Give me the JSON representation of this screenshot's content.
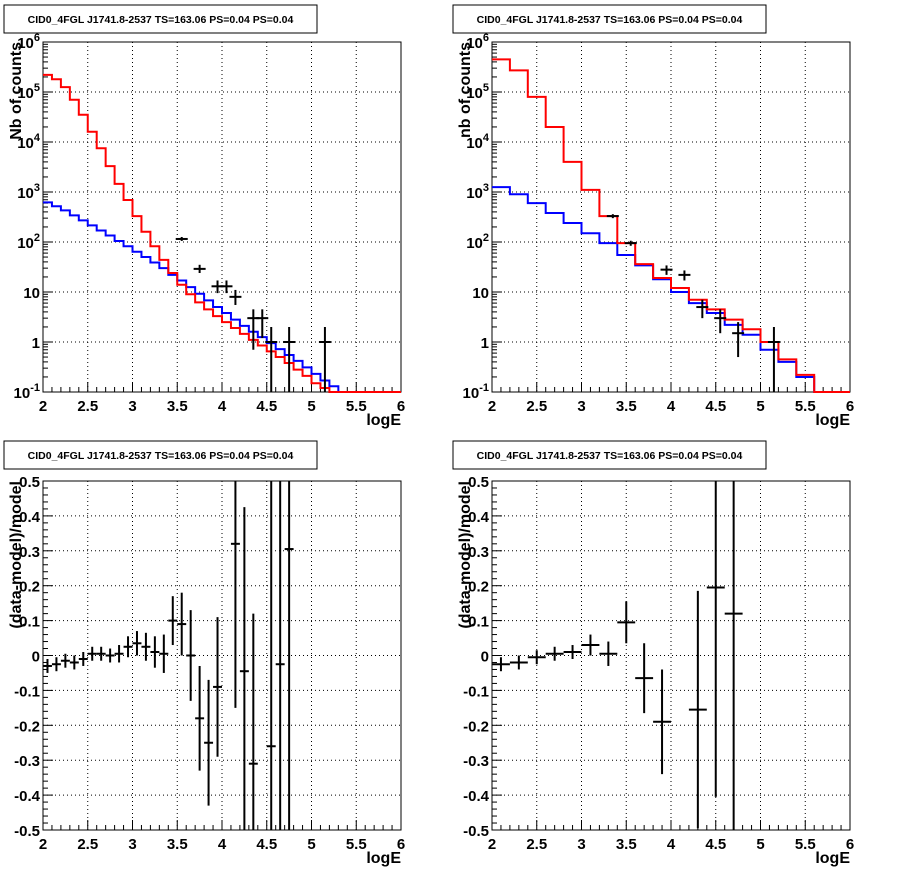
{
  "chart_data": [
    {
      "type": "line",
      "title": "CID0_4FGL J1741.8-2537 TS=163.06 PS=0.04 PS=0.04",
      "xlabel": "logE",
      "ylabel": "Nb of counts",
      "xlim": [
        2,
        6
      ],
      "ylim": [
        0.1,
        1000000
      ],
      "yscale": "log",
      "grid": true,
      "xticks": [
        "2",
        "2.5",
        "3",
        "3.5",
        "4",
        "4.5",
        "5",
        "5.5",
        "6"
      ],
      "yticks": [
        "10^-1",
        "1",
        "10",
        "10^2",
        "10^3",
        "10^4",
        "10^5",
        "10^6"
      ],
      "bin_edges": [
        2.0,
        2.1,
        2.2,
        2.3,
        2.4,
        2.5,
        2.6,
        2.7,
        2.8,
        2.9,
        3.0,
        3.1,
        3.2,
        3.3,
        3.4,
        3.5,
        3.6,
        3.7,
        3.8,
        3.9,
        4.0,
        4.1,
        4.2,
        4.3,
        4.4,
        4.5,
        4.6,
        4.7,
        4.8,
        4.9,
        5.0,
        5.1,
        5.2,
        5.3,
        5.4,
        5.5,
        5.6,
        5.7,
        5.8,
        5.9,
        6.0
      ],
      "series": [
        {
          "color": "#0000ff",
          "values": [
            620,
            520,
            430,
            340,
            270,
            215,
            170,
            135,
            105,
            82,
            64,
            50,
            39,
            30,
            22,
            17,
            12.5,
            9.2,
            6.8,
            5.0,
            3.8,
            2.8,
            2.1,
            1.6,
            1.25,
            0.95,
            0.72,
            0.55,
            0.42,
            0.31,
            0.23,
            0.17,
            0.13,
            0.1,
            0.1,
            0.1,
            0.1,
            0.1,
            0.1,
            0.1
          ]
        },
        {
          "color": "#ff0000",
          "values": [
            220000,
            180000,
            125000,
            70000,
            35000,
            16000,
            7500,
            3300,
            1450,
            690,
            330,
            160,
            82,
            44,
            24,
            14,
            9,
            6.2,
            4.5,
            3.3,
            2.5,
            1.9,
            1.45,
            1.1,
            0.85,
            0.65,
            0.5,
            0.38,
            0.28,
            0.21,
            0.15,
            0.12,
            0.1,
            0.1,
            0.1,
            0.1,
            0.1,
            0.1,
            0.1,
            0.1
          ]
        }
      ],
      "data_points": [
        {
          "x": 3.55,
          "y": 115,
          "yerr": [
            105,
            126
          ]
        },
        {
          "x": 3.75,
          "y": 29,
          "yerr": [
            24,
            35
          ]
        },
        {
          "x": 3.95,
          "y": 13,
          "yerr": [
            9.5,
            17
          ]
        },
        {
          "x": 4.05,
          "y": 13,
          "yerr": [
            9.5,
            17
          ]
        },
        {
          "x": 4.15,
          "y": 8,
          "yerr": [
            5.5,
            11
          ]
        },
        {
          "x": 4.35,
          "y": 3,
          "yerr": [
            0.7,
            4.5
          ]
        },
        {
          "x": 4.45,
          "y": 3,
          "yerr": [
            1.2,
            4.5
          ]
        },
        {
          "x": 4.55,
          "y": 1,
          "yerr": [
            0.1,
            2
          ]
        },
        {
          "x": 4.75,
          "y": 1,
          "yerr": [
            0.1,
            2
          ]
        },
        {
          "x": 5.15,
          "y": 1,
          "yerr": [
            0.1,
            2
          ]
        }
      ]
    },
    {
      "type": "line",
      "title": "CID0_4FGL J1741.8-2537 TS=163.06 PS=0.04 PS=0.04",
      "xlabel": "logE",
      "ylabel": "nb of counts",
      "xlim": [
        2,
        6
      ],
      "ylim": [
        0.1,
        1000000
      ],
      "yscale": "log",
      "grid": true,
      "xticks": [
        "2",
        "2.5",
        "3",
        "3.5",
        "4",
        "4.5",
        "5",
        "5.5",
        "6"
      ],
      "yticks": [
        "10^-1",
        "1",
        "10",
        "10^2",
        "10^3",
        "10^4",
        "10^5",
        "10^6"
      ],
      "bin_edges": [
        2.0,
        2.2,
        2.4,
        2.6,
        2.8,
        3.0,
        3.2,
        3.4,
        3.6,
        3.8,
        4.0,
        4.2,
        4.4,
        4.6,
        4.8,
        5.0,
        5.2,
        5.4,
        5.6,
        5.8,
        6.0
      ],
      "series": [
        {
          "color": "#0000ff",
          "values": [
            1250,
            900,
            600,
            380,
            240,
            150,
            95,
            55,
            34,
            18,
            10,
            6,
            3.8,
            2.2,
            1.4,
            0.7,
            0.4,
            0.2,
            0.1,
            0.1
          ]
        },
        {
          "color": "#ff0000",
          "values": [
            450000,
            270000,
            80000,
            20000,
            4000,
            1100,
            330,
            95,
            36,
            19,
            12,
            7,
            4.5,
            2.8,
            1.8,
            1.0,
            0.45,
            0.22,
            0.1,
            0.1
          ]
        }
      ],
      "data_points": [
        {
          "x": 3.35,
          "y": 330,
          "yerr": [
            300,
            360
          ]
        },
        {
          "x": 3.55,
          "y": 95,
          "yerr": [
            84,
            106
          ]
        },
        {
          "x": 3.95,
          "y": 28,
          "yerr": [
            22,
            34
          ]
        },
        {
          "x": 4.15,
          "y": 22,
          "yerr": [
            17,
            27
          ]
        },
        {
          "x": 4.35,
          "y": 5,
          "yerr": [
            3,
            7
          ]
        },
        {
          "x": 4.55,
          "y": 3,
          "yerr": [
            1.5,
            4.5
          ]
        },
        {
          "x": 4.75,
          "y": 1.5,
          "yerr": [
            0.5,
            2.5
          ]
        },
        {
          "x": 5.15,
          "y": 1,
          "yerr": [
            0.1,
            2
          ]
        }
      ]
    },
    {
      "type": "scatter",
      "title": "CID0_4FGL J1741.8-2537 TS=163.06 PS=0.04 PS=0.04",
      "xlabel": "logE",
      "ylabel": "(data-model)/model",
      "xlim": [
        2,
        6
      ],
      "ylim": [
        -0.5,
        0.5
      ],
      "grid": true,
      "xticks": [
        "2",
        "2.5",
        "3",
        "3.5",
        "4",
        "4.5",
        "5",
        "5.5",
        "6"
      ],
      "yticks": [
        "-0.5",
        "-0.4",
        "-0.3",
        "-0.2",
        "-0.1",
        "0",
        "0.1",
        "0.2",
        "0.3",
        "0.4",
        "0.5"
      ],
      "xerr": 0.05,
      "points": [
        {
          "x": 2.05,
          "y": -0.03,
          "e": 0.02
        },
        {
          "x": 2.15,
          "y": -0.025,
          "e": 0.02
        },
        {
          "x": 2.25,
          "y": -0.015,
          "e": 0.02
        },
        {
          "x": 2.35,
          "y": -0.02,
          "e": 0.02
        },
        {
          "x": 2.45,
          "y": -0.01,
          "e": 0.02
        },
        {
          "x": 2.55,
          "y": 0.005,
          "e": 0.02
        },
        {
          "x": 2.65,
          "y": 0.005,
          "e": 0.02
        },
        {
          "x": 2.75,
          "y": 0.0,
          "e": 0.02
        },
        {
          "x": 2.85,
          "y": 0.005,
          "e": 0.025
        },
        {
          "x": 2.95,
          "y": 0.025,
          "e": 0.03
        },
        {
          "x": 3.05,
          "y": 0.035,
          "e": 0.035
        },
        {
          "x": 3.15,
          "y": 0.025,
          "e": 0.04
        },
        {
          "x": 3.25,
          "y": 0.01,
          "e": 0.045
        },
        {
          "x": 3.35,
          "y": 0.005,
          "e": 0.055
        },
        {
          "x": 3.45,
          "y": 0.1,
          "e": 0.07
        },
        {
          "x": 3.55,
          "y": 0.09,
          "e": 0.09
        },
        {
          "x": 3.65,
          "y": 0.0,
          "e": 0.13
        },
        {
          "x": 3.75,
          "y": -0.18,
          "e": 0.15
        },
        {
          "x": 3.85,
          "y": -0.25,
          "e": 0.18
        },
        {
          "x": 3.95,
          "y": -0.09,
          "e": 0.2
        },
        {
          "x": 4.15,
          "y": 0.32,
          "e": 0.47
        },
        {
          "x": 4.25,
          "y": -0.045,
          "e": 0.47
        },
        {
          "x": 4.35,
          "y": -0.31,
          "e": 0.43
        },
        {
          "x": 4.55,
          "y": -0.26,
          "e": 0.8
        },
        {
          "x": 4.65,
          "y": -0.025,
          "e": 0.8
        },
        {
          "x": 4.75,
          "y": 0.305,
          "e": 0.9
        }
      ]
    },
    {
      "type": "scatter",
      "title": "CID0_4FGL J1741.8-2537 TS=163.06 PS=0.04 PS=0.04",
      "xlabel": "logE",
      "ylabel": "(data-model)/model",
      "xlim": [
        2,
        6
      ],
      "ylim": [
        -0.5,
        0.5
      ],
      "grid": true,
      "xticks": [
        "2",
        "2.5",
        "3",
        "3.5",
        "4",
        "4.5",
        "5",
        "5.5",
        "6"
      ],
      "yticks": [
        "-0.5",
        "-0.4",
        "-0.3",
        "-0.2",
        "-0.1",
        "0",
        "0.1",
        "0.2",
        "0.3",
        "0.4",
        "0.5"
      ],
      "xerr": 0.1,
      "points": [
        {
          "x": 2.1,
          "y": -0.025,
          "e": 0.02
        },
        {
          "x": 2.3,
          "y": -0.02,
          "e": 0.02
        },
        {
          "x": 2.5,
          "y": -0.005,
          "e": 0.02
        },
        {
          "x": 2.7,
          "y": 0.005,
          "e": 0.02
        },
        {
          "x": 2.9,
          "y": 0.01,
          "e": 0.02
        },
        {
          "x": 3.1,
          "y": 0.03,
          "e": 0.03
        },
        {
          "x": 3.3,
          "y": 0.005,
          "e": 0.035
        },
        {
          "x": 3.5,
          "y": 0.095,
          "e": 0.06
        },
        {
          "x": 3.7,
          "y": -0.065,
          "e": 0.1
        },
        {
          "x": 3.9,
          "y": -0.19,
          "e": 0.15
        },
        {
          "x": 4.3,
          "y": -0.155,
          "e": 0.34
        },
        {
          "x": 4.5,
          "y": 0.195,
          "e": 0.6
        },
        {
          "x": 4.7,
          "y": 0.12,
          "e": 0.9
        }
      ]
    }
  ]
}
